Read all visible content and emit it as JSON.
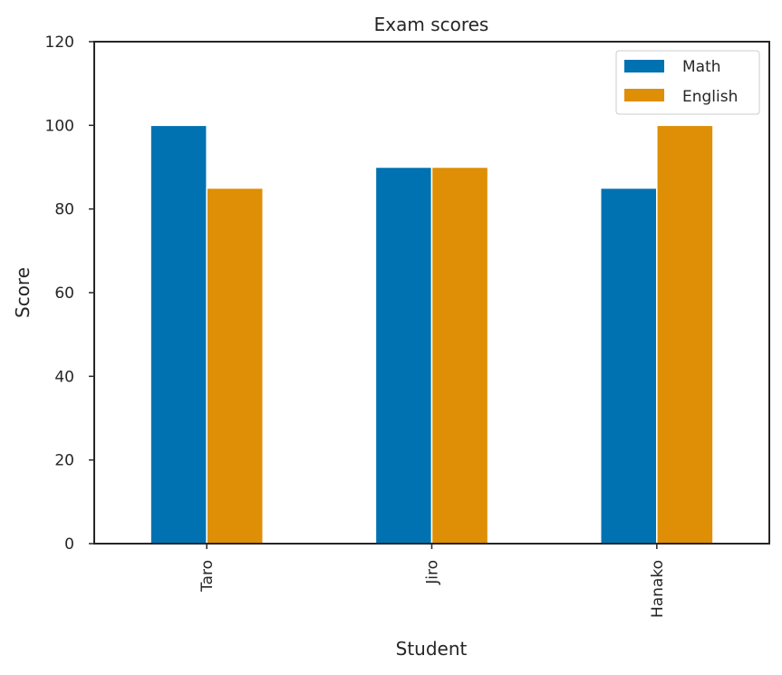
{
  "chart_data": {
    "type": "bar",
    "title": "Exam scores",
    "xlabel": "Student",
    "ylabel": "Score",
    "categories": [
      "Taro",
      "Jiro",
      "Hanako"
    ],
    "series": [
      {
        "name": "Math",
        "values": [
          100,
          90,
          85
        ],
        "color": "#0072b2"
      },
      {
        "name": "English",
        "values": [
          85,
          90,
          100
        ],
        "color": "#de8f05"
      }
    ],
    "ylim": [
      0,
      120
    ],
    "yticks": [
      "0",
      "20",
      "40",
      "60",
      "80",
      "100",
      "120"
    ],
    "x_tick_rotation": "vertical",
    "grid": false,
    "legend_position": "top-right"
  }
}
